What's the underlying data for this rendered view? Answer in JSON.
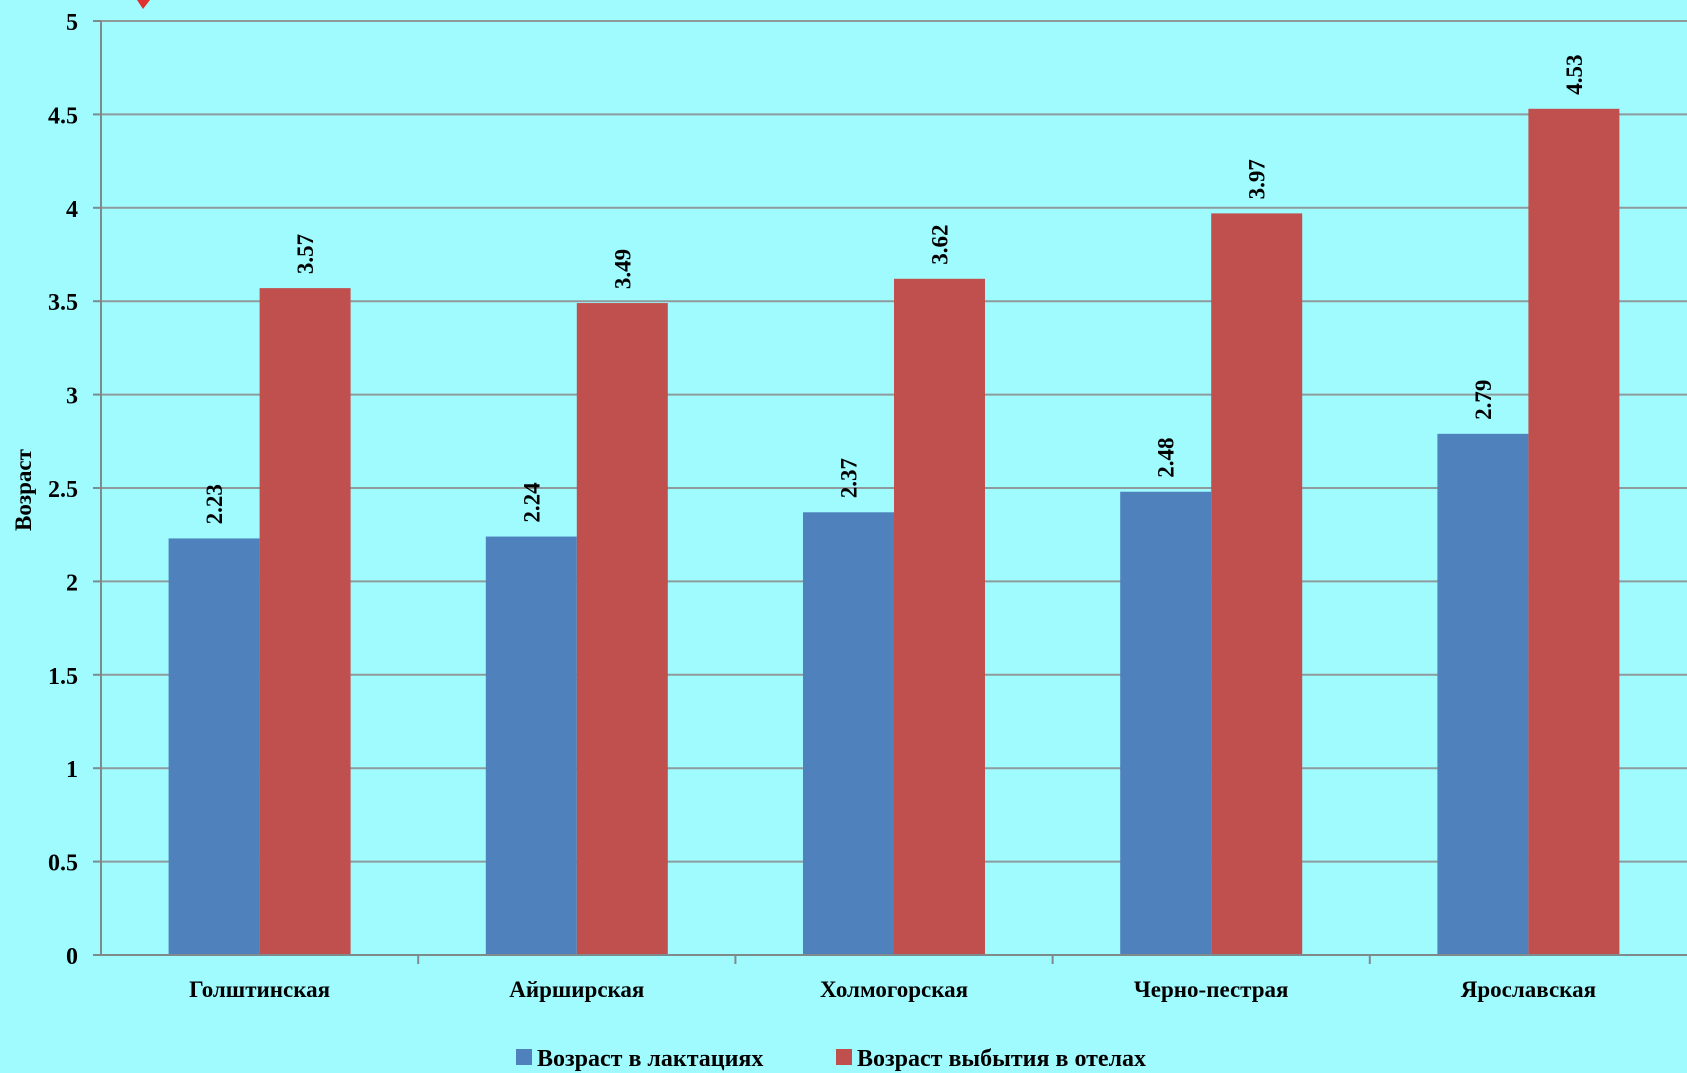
{
  "colors": {
    "background": "#a0fbff",
    "grid": "#8f9a9c",
    "axis": "#7f8a8c",
    "marker": "#e03030"
  },
  "chart_data": {
    "type": "bar",
    "categories": [
      "Голштинская",
      "Айрширская",
      "Холмогорская",
      "Черно-пестрая",
      "Ярославская"
    ],
    "series": [
      {
        "name": "Возраст в лактациях",
        "color": "#4f81bd",
        "values": [
          2.23,
          2.24,
          2.37,
          2.48,
          2.79
        ]
      },
      {
        "name": "Возраст выбытия в отелах",
        "color": "#c0504d",
        "values": [
          3.57,
          3.49,
          3.62,
          3.97,
          4.53
        ]
      }
    ],
    "ylabel": "Возраст",
    "ylim": [
      0,
      5
    ],
    "yticks": [
      "0",
      "0.5",
      "1",
      "1.5",
      "2",
      "2.5",
      "3",
      "3.5",
      "4",
      "4.5",
      "5"
    ],
    "grid": true,
    "legend": "bottom",
    "data_labels": true
  }
}
